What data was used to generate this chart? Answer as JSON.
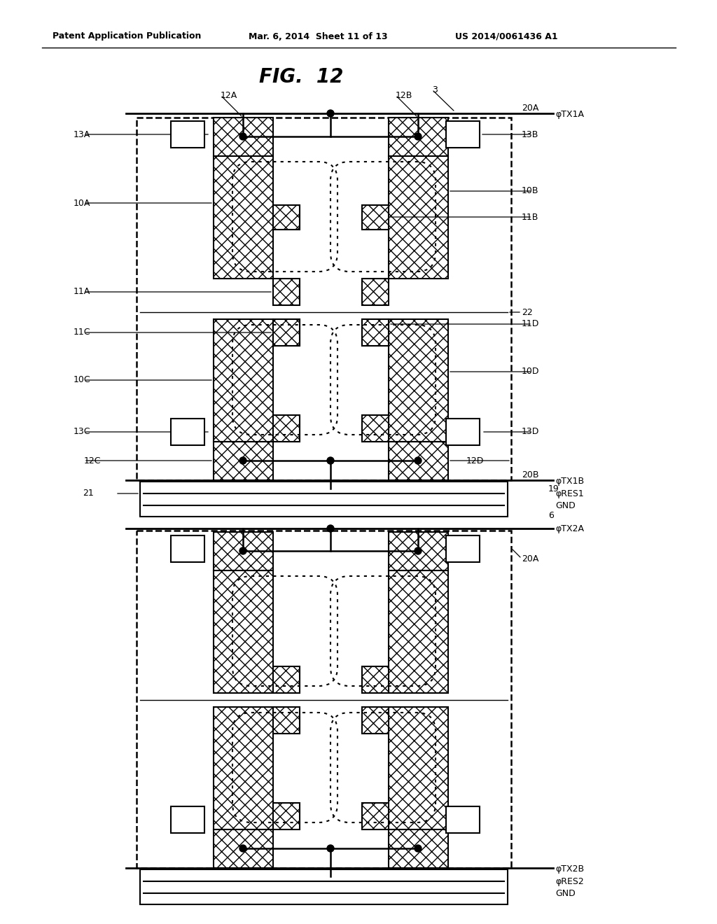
{
  "title": "FIG.  12",
  "header_left": "Patent Application Publication",
  "header_mid": "Mar. 6, 2014  Sheet 11 of 13",
  "header_right": "US 2014/0061436 A1",
  "bg_color": "#ffffff",
  "fig_width": 10.24,
  "fig_height": 13.2
}
